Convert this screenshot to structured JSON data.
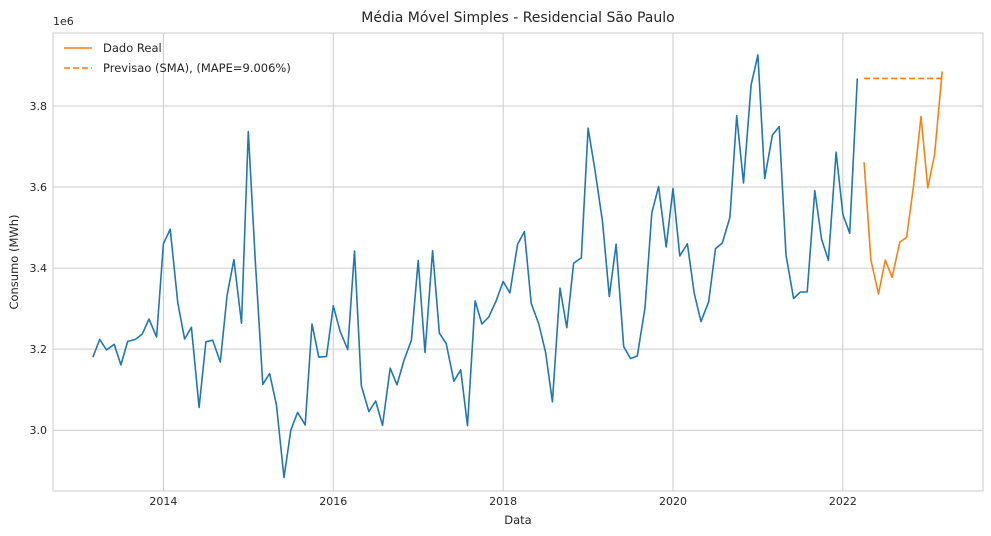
{
  "chart_data": {
    "type": "line",
    "title": "Média Móvel Simples - Residencial São Paulo",
    "xlabel": "Data",
    "ylabel": "Consumo (MWh)",
    "y_offset_label": "1e6",
    "xlim": [
      2012.7,
      2023.65
    ],
    "ylim": [
      2.85,
      3.98
    ],
    "x_ticks": [
      2014,
      2016,
      2018,
      2020,
      2022
    ],
    "y_ticks": [
      3.0,
      3.2,
      3.4,
      3.6,
      3.8
    ],
    "y_tick_labels": [
      "3.0",
      "3.2",
      "3.4",
      "3.6",
      "3.8"
    ],
    "grid": true,
    "legend_position": "top-left",
    "series": [
      {
        "name": "",
        "color": "#1f77b4",
        "style": "solid",
        "x": [
          2013.17,
          2013.25,
          2013.33,
          2013.42,
          2013.5,
          2013.58,
          2013.67,
          2013.75,
          2013.83,
          2013.92,
          2014.0,
          2014.08,
          2014.17,
          2014.25,
          2014.33,
          2014.42,
          2014.5,
          2014.58,
          2014.67,
          2014.75,
          2014.83,
          2014.92,
          2015.0,
          2015.08,
          2015.17,
          2015.25,
          2015.33,
          2015.42,
          2015.5,
          2015.58,
          2015.67,
          2015.75,
          2015.83,
          2015.92,
          2016.0,
          2016.08,
          2016.17,
          2016.25,
          2016.33,
          2016.42,
          2016.5,
          2016.58,
          2016.67,
          2016.75,
          2016.83,
          2016.92,
          2017.0,
          2017.08,
          2017.17,
          2017.25,
          2017.33,
          2017.42,
          2017.5,
          2017.58,
          2017.67,
          2017.75,
          2017.83,
          2017.92,
          2018.0,
          2018.08,
          2018.17,
          2018.25,
          2018.33,
          2018.42,
          2018.5,
          2018.58,
          2018.67,
          2018.75,
          2018.83,
          2018.92,
          2019.0,
          2019.08,
          2019.17,
          2019.25,
          2019.33,
          2019.42,
          2019.5,
          2019.58,
          2019.67,
          2019.75,
          2019.83,
          2019.92,
          2020.0,
          2020.08,
          2020.17,
          2020.25,
          2020.33,
          2020.42,
          2020.5,
          2020.58,
          2020.67,
          2020.75,
          2020.83,
          2020.92,
          2021.0,
          2021.08,
          2021.17,
          2021.25,
          2021.33,
          2021.42,
          2021.5,
          2021.58,
          2021.67,
          2021.75,
          2021.83,
          2021.92,
          2022.0,
          2022.08,
          2022.17
        ],
        "values": [
          3.18,
          3.224,
          3.198,
          3.212,
          3.161,
          3.219,
          3.224,
          3.237,
          3.274,
          3.23,
          3.46,
          3.496,
          3.314,
          3.225,
          3.254,
          3.056,
          3.218,
          3.222,
          3.168,
          3.333,
          3.421,
          3.264,
          3.737,
          3.426,
          3.113,
          3.14,
          3.063,
          2.883,
          3.0,
          3.044,
          3.013,
          3.262,
          3.18,
          3.182,
          3.307,
          3.244,
          3.199,
          3.442,
          3.11,
          3.046,
          3.072,
          3.012,
          3.153,
          3.112,
          3.171,
          3.222,
          3.419,
          3.192,
          3.443,
          3.239,
          3.214,
          3.121,
          3.149,
          3.011,
          3.319,
          3.262,
          3.279,
          3.32,
          3.367,
          3.339,
          3.459,
          3.49,
          3.313,
          3.262,
          3.192,
          3.07,
          3.35,
          3.253,
          3.412,
          3.425,
          3.745,
          3.643,
          3.515,
          3.33,
          3.459,
          3.206,
          3.177,
          3.183,
          3.302,
          3.536,
          3.601,
          3.452,
          3.596,
          3.43,
          3.46,
          3.338,
          3.268,
          3.317,
          3.448,
          3.462,
          3.525,
          3.776,
          3.61,
          3.852,
          3.926,
          3.621,
          3.728,
          3.749,
          3.432,
          3.325,
          3.341,
          3.341,
          3.591,
          3.471,
          3.419,
          3.686,
          3.532,
          3.486,
          3.868
        ]
      },
      {
        "name": "Dado Real",
        "color": "#ff7f0e",
        "style": "solid",
        "x": [
          2022.25,
          2022.33,
          2022.42,
          2022.5,
          2022.58,
          2022.67,
          2022.75,
          2022.83,
          2022.92,
          2023.0,
          2023.08,
          2023.17
        ],
        "values": [
          3.661,
          3.42,
          3.336,
          3.42,
          3.377,
          3.464,
          3.476,
          3.6,
          3.774,
          3.598,
          3.68,
          3.885
        ]
      },
      {
        "name": "Previsao (SMA), (MAPE=9.006%)",
        "color": "#ff7f0e",
        "style": "dashed",
        "x": [
          2022.25,
          2023.17
        ],
        "values": [
          3.868,
          3.868
        ]
      }
    ]
  }
}
